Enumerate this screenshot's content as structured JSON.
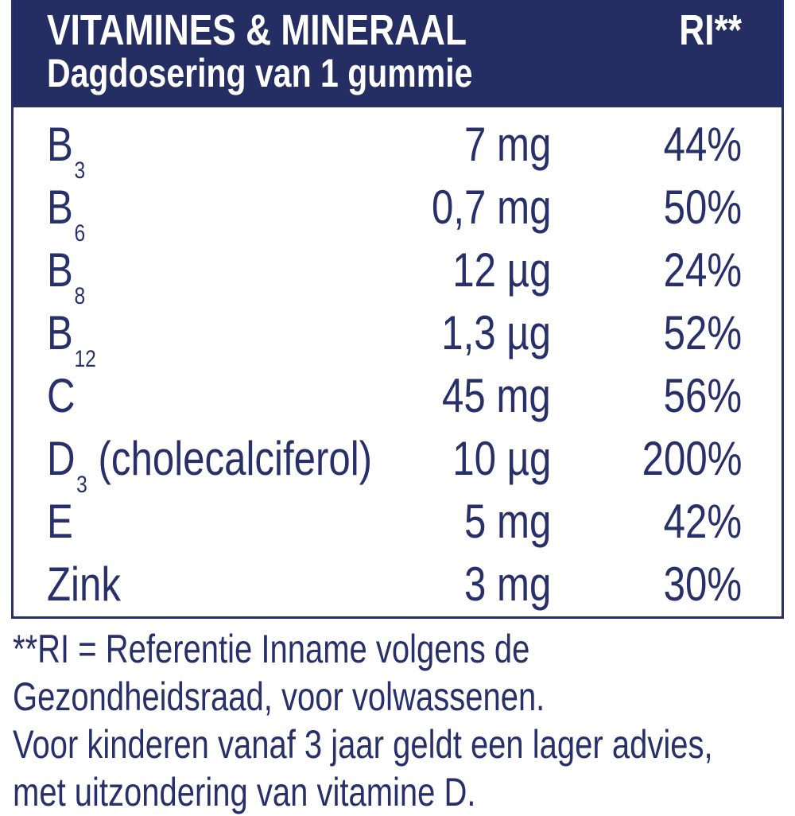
{
  "header": {
    "title": "VITAMINES & MINERAAL",
    "subtitle": "Dagdosering van 1 gummie",
    "ri_label": "RI**"
  },
  "rows": [
    {
      "name": "B",
      "sub": "3",
      "suffix": "",
      "amount": "7 mg",
      "ri": "44%"
    },
    {
      "name": "B",
      "sub": "6",
      "suffix": "",
      "amount": "0,7 mg",
      "ri": "50%"
    },
    {
      "name": "B",
      "sub": "8",
      "suffix": "",
      "amount": "12 µg",
      "ri": "24%"
    },
    {
      "name": "B",
      "sub": "12",
      "suffix": "",
      "amount": "1,3 µg",
      "ri": "52%"
    },
    {
      "name": "C",
      "sub": "",
      "suffix": "",
      "amount": "45 mg",
      "ri": "56%"
    },
    {
      "name": "D",
      "sub": "3",
      "suffix": " (cholecalciferol)",
      "amount": "10 µg",
      "ri": "200%"
    },
    {
      "name": "E",
      "sub": "",
      "suffix": "",
      "amount": "5 mg",
      "ri": "42%"
    },
    {
      "name": "Zink",
      "sub": "",
      "suffix": "",
      "amount": "3 mg",
      "ri": "30%"
    }
  ],
  "footnote": [
    "**RI = Referentie Inname volgens de",
    "Gezondheidsraad, voor volwassenen.",
    "Voor kinderen vanaf 3 jaar geldt een lager advies,",
    "met uitzondering van vitamine D."
  ],
  "colors": {
    "navy": "#252e62",
    "text": "#27306a"
  }
}
